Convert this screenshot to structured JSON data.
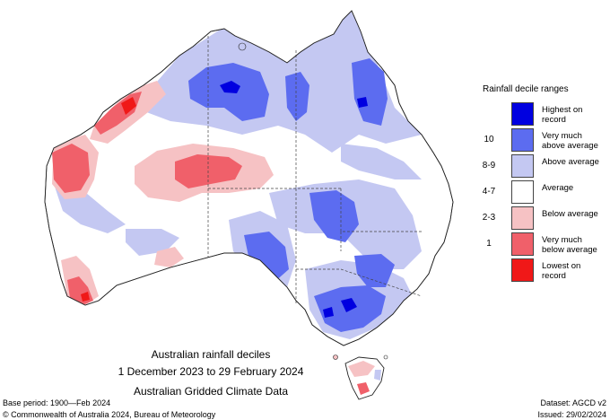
{
  "map": {
    "title": "Australian rainfall deciles",
    "period": "1 December 2023 to 29 February 2024",
    "source": "Australian Gridded Climate Data"
  },
  "legend": {
    "title": "Rainfall decile ranges",
    "items": [
      {
        "code": "",
        "label": "Highest on record",
        "color": "#0000e0"
      },
      {
        "code": "10",
        "label": "Very much above average",
        "color": "#5c6cf0"
      },
      {
        "code": "8-9",
        "label": "Above average",
        "color": "#c4c8f2"
      },
      {
        "code": "4-7",
        "label": "Average",
        "color": "#ffffff"
      },
      {
        "code": "2-3",
        "label": "Below average",
        "color": "#f6c2c4"
      },
      {
        "code": "1",
        "label": "Very much below average",
        "color": "#f0606a"
      },
      {
        "code": "",
        "label": "Lowest on record",
        "color": "#f01818"
      }
    ]
  },
  "footer": {
    "base_period": "Base period: 1900—Feb 2024",
    "dataset": "Dataset: AGCD v2",
    "copyright": "© Commonwealth of Australia 2024, Bureau of Meteorology",
    "issued": "Issued: 29/02/2024"
  }
}
